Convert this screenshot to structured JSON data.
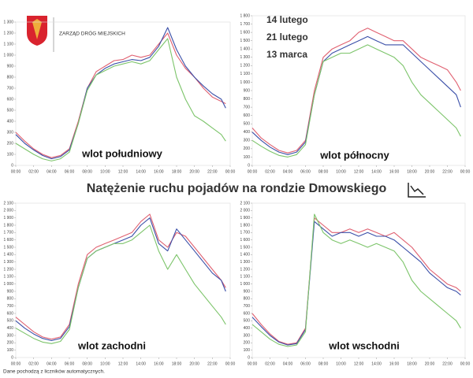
{
  "logo_text": "ZARZĄD DRÓG MIEJSKICH",
  "title": "Natężenie ruchu pojadów na rondzie Dmowskiego",
  "footnote": "Dane pochodzą z liczników automatycznych.",
  "chart_data": [
    {
      "type": "line",
      "annotation": "wlot południowy",
      "x": [
        0,
        1,
        2,
        3,
        4,
        5,
        6,
        7,
        8,
        9,
        10,
        11,
        12,
        13,
        14,
        15,
        16,
        17,
        18,
        19,
        20,
        21,
        22,
        23,
        23.5
      ],
      "xlim": [
        0,
        24
      ],
      "xticks": [
        {
          "value": 0,
          "label": "00:00"
        },
        {
          "value": 2,
          "label": "02:00"
        },
        {
          "value": 4,
          "label": "04:00"
        },
        {
          "value": 6,
          "label": "06:00"
        },
        {
          "value": 8,
          "label": "08:00"
        },
        {
          "value": 10,
          "label": "10:00"
        },
        {
          "value": 12,
          "label": "12:00"
        },
        {
          "value": 14,
          "label": "14:00"
        },
        {
          "value": 16,
          "label": "16:00"
        },
        {
          "value": 18,
          "label": "18:00"
        },
        {
          "value": 20,
          "label": "20:00"
        },
        {
          "value": 22,
          "label": "22:00"
        },
        {
          "value": 24,
          "label": "00:00"
        }
      ],
      "ylim": [
        0,
        1300
      ],
      "yticks": [
        0,
        100,
        200,
        300,
        400,
        500,
        600,
        700,
        800,
        900,
        {
          "value": 1000,
          "label": "1 000"
        },
        {
          "value": 1100,
          "label": "1 100"
        },
        {
          "value": 1200,
          "label": "1 200"
        },
        {
          "value": 1300,
          "label": "1 300"
        }
      ],
      "series": [
        {
          "color": "#e06070",
          "values": [
            300,
            220,
            150,
            100,
            70,
            90,
            150,
            400,
            700,
            850,
            900,
            950,
            960,
            1000,
            980,
            1000,
            1100,
            1200,
            1000,
            880,
            800,
            700,
            620,
            580,
            560
          ]
        },
        {
          "color": "#3a4fa8",
          "values": [
            280,
            200,
            140,
            90,
            60,
            80,
            140,
            380,
            700,
            820,
            880,
            920,
            940,
            960,
            950,
            980,
            1080,
            1250,
            1050,
            900,
            800,
            720,
            650,
            600,
            520
          ]
        },
        {
          "color": "#7cc46a",
          "values": [
            200,
            150,
            100,
            60,
            40,
            60,
            120,
            380,
            680,
            820,
            860,
            900,
            920,
            940,
            920,
            950,
            1050,
            1150,
            800,
            600,
            450,
            400,
            340,
            280,
            220
          ]
        }
      ]
    },
    {
      "type": "line",
      "annotation": "wlot północny",
      "x": [
        0,
        1,
        2,
        3,
        4,
        5,
        6,
        7,
        8,
        9,
        10,
        11,
        12,
        13,
        14,
        15,
        16,
        17,
        18,
        19,
        20,
        21,
        22,
        23,
        23.5
      ],
      "xlim": [
        0,
        24
      ],
      "xticks": [
        {
          "value": 0,
          "label": "00:00"
        },
        {
          "value": 2,
          "label": "02:00"
        },
        {
          "value": 4,
          "label": "04:00"
        },
        {
          "value": 6,
          "label": "06:00"
        },
        {
          "value": 8,
          "label": "08:00"
        },
        {
          "value": 10,
          "label": "10:00"
        },
        {
          "value": 12,
          "label": "12:00"
        },
        {
          "value": 14,
          "label": "14:00"
        },
        {
          "value": 16,
          "label": "16:00"
        },
        {
          "value": 18,
          "label": "18:00"
        },
        {
          "value": 20,
          "label": "20:00"
        },
        {
          "value": 22,
          "label": "22:00"
        },
        {
          "value": 24,
          "label": "00:00"
        }
      ],
      "ylim": [
        0,
        1800
      ],
      "yticks": [
        0,
        100,
        200,
        300,
        400,
        500,
        600,
        700,
        800,
        900,
        {
          "value": 1000,
          "label": "1 000"
        },
        {
          "value": 1100,
          "label": "1 100"
        },
        {
          "value": 1200,
          "label": "1 200"
        },
        {
          "value": 1300,
          "label": "1 300"
        },
        {
          "value": 1400,
          "label": "1 400"
        },
        {
          "value": 1500,
          "label": "1 500"
        },
        {
          "value": 1600,
          "label": "1 600"
        },
        {
          "value": 1700,
          "label": "1 700"
        },
        {
          "value": 1800,
          "label": "1 800"
        }
      ],
      "legend": "top-left",
      "series": [
        {
          "name": "14 lutego",
          "color": "#e06070",
          "values": [
            450,
            330,
            250,
            180,
            150,
            180,
            300,
            900,
            1300,
            1400,
            1450,
            1500,
            1600,
            1650,
            1600,
            1550,
            1500,
            1500,
            1400,
            1300,
            1250,
            1200,
            1150,
            1000,
            900
          ]
        },
        {
          "name": "21 lutego",
          "color": "#3a4fa8",
          "values": [
            400,
            300,
            220,
            160,
            130,
            160,
            280,
            850,
            1250,
            1350,
            1400,
            1450,
            1500,
            1550,
            1500,
            1450,
            1450,
            1450,
            1350,
            1250,
            1150,
            1050,
            950,
            850,
            700
          ]
        },
        {
          "name": "13 marca",
          "color": "#7cc46a",
          "values": [
            300,
            230,
            170,
            120,
            100,
            130,
            250,
            850,
            1250,
            1300,
            1350,
            1350,
            1400,
            1450,
            1400,
            1350,
            1300,
            1200,
            1000,
            850,
            750,
            650,
            550,
            450,
            350
          ]
        }
      ]
    },
    {
      "type": "line",
      "annotation": "wlot zachodni",
      "x": [
        0,
        1,
        2,
        3,
        4,
        5,
        6,
        7,
        8,
        9,
        10,
        11,
        12,
        13,
        14,
        15,
        16,
        17,
        18,
        19,
        20,
        21,
        22,
        23,
        23.5
      ],
      "xlim": [
        0,
        24
      ],
      "xticks": [
        {
          "value": 0,
          "label": "00:00"
        },
        {
          "value": 2,
          "label": "02:00"
        },
        {
          "value": 4,
          "label": "04:00"
        },
        {
          "value": 6,
          "label": "06:00"
        },
        {
          "value": 8,
          "label": "08:00"
        },
        {
          "value": 10,
          "label": "10:00"
        },
        {
          "value": 12,
          "label": "12:00"
        },
        {
          "value": 14,
          "label": "14:00"
        },
        {
          "value": 16,
          "label": "16:00"
        },
        {
          "value": 18,
          "label": "18:00"
        },
        {
          "value": 20,
          "label": "20:00"
        },
        {
          "value": 22,
          "label": "22:00"
        },
        {
          "value": 24,
          "label": "00:00"
        }
      ],
      "ylim": [
        0,
        2100
      ],
      "yticks": [
        0,
        100,
        200,
        300,
        400,
        500,
        600,
        700,
        800,
        900,
        {
          "value": 1000,
          "label": "1 000"
        },
        {
          "value": 1100,
          "label": "1 100"
        },
        {
          "value": 1200,
          "label": "1 200"
        },
        {
          "value": 1300,
          "label": "1 300"
        },
        {
          "value": 1400,
          "label": "1 400"
        },
        {
          "value": 1500,
          "label": "1 500"
        },
        {
          "value": 1600,
          "label": "1 600"
        },
        {
          "value": 1700,
          "label": "1 700"
        },
        {
          "value": 1800,
          "label": "1 800"
        },
        {
          "value": 1900,
          "label": "1 900"
        },
        {
          "value": 2000,
          "label": "2 000"
        },
        {
          "value": 2100,
          "label": "2 100"
        }
      ],
      "series": [
        {
          "color": "#e06070",
          "values": [
            550,
            450,
            350,
            280,
            250,
            280,
            450,
            1000,
            1400,
            1500,
            1550,
            1600,
            1650,
            1700,
            1850,
            1950,
            1600,
            1500,
            1700,
            1650,
            1500,
            1350,
            1200,
            1050,
            950
          ]
        },
        {
          "color": "#3a4fa8",
          "values": [
            500,
            400,
            320,
            260,
            230,
            260,
            420,
            950,
            1350,
            1450,
            1500,
            1550,
            1600,
            1650,
            1800,
            1900,
            1550,
            1450,
            1750,
            1600,
            1450,
            1300,
            1150,
            1050,
            900
          ]
        },
        {
          "color": "#7cc46a",
          "values": [
            400,
            330,
            260,
            210,
            190,
            220,
            380,
            950,
            1350,
            1450,
            1500,
            1550,
            1550,
            1600,
            1700,
            1800,
            1450,
            1200,
            1400,
            1200,
            1000,
            850,
            700,
            550,
            450
          ]
        }
      ]
    },
    {
      "type": "line",
      "annotation": "wlot wschodni",
      "x": [
        0,
        1,
        2,
        3,
        4,
        5,
        6,
        7,
        8,
        9,
        10,
        11,
        12,
        13,
        14,
        15,
        16,
        17,
        18,
        19,
        20,
        21,
        22,
        23,
        23.5
      ],
      "xlim": [
        0,
        24
      ],
      "xticks": [
        {
          "value": 0,
          "label": "00:00"
        },
        {
          "value": 2,
          "label": "02:00"
        },
        {
          "value": 4,
          "label": "04:00"
        },
        {
          "value": 6,
          "label": "06:00"
        },
        {
          "value": 8,
          "label": "08:00"
        },
        {
          "value": 10,
          "label": "10:00"
        },
        {
          "value": 12,
          "label": "12:00"
        },
        {
          "value": 14,
          "label": "14:00"
        },
        {
          "value": 16,
          "label": "16:00"
        },
        {
          "value": 18,
          "label": "18:00"
        },
        {
          "value": 20,
          "label": "20:00"
        },
        {
          "value": 22,
          "label": "22:00"
        },
        {
          "value": 24,
          "label": "00:00"
        }
      ],
      "ylim": [
        0,
        2100
      ],
      "yticks": [
        0,
        100,
        200,
        300,
        400,
        500,
        600,
        700,
        800,
        900,
        {
          "value": 1000,
          "label": "1 000"
        },
        {
          "value": 1100,
          "label": "1 100"
        },
        {
          "value": 1200,
          "label": "1 200"
        },
        {
          "value": 1300,
          "label": "1 300"
        },
        {
          "value": 1400,
          "label": "1 400"
        },
        {
          "value": 1500,
          "label": "1 500"
        },
        {
          "value": 1600,
          "label": "1 600"
        },
        {
          "value": 1700,
          "label": "1 700"
        },
        {
          "value": 1800,
          "label": "1 800"
        },
        {
          "value": 1900,
          "label": "1 900"
        },
        {
          "value": 2000,
          "label": "2 000"
        },
        {
          "value": 2100,
          "label": "2 100"
        }
      ],
      "series": [
        {
          "color": "#e06070",
          "values": [
            600,
            450,
            320,
            220,
            180,
            200,
            400,
            1900,
            1800,
            1700,
            1700,
            1750,
            1700,
            1750,
            1700,
            1650,
            1700,
            1600,
            1500,
            1350,
            1200,
            1100,
            1000,
            950,
            900
          ]
        },
        {
          "color": "#3a4fa8",
          "values": [
            550,
            420,
            300,
            210,
            170,
            190,
            380,
            1850,
            1750,
            1650,
            1700,
            1700,
            1650,
            1700,
            1650,
            1650,
            1600,
            1500,
            1400,
            1300,
            1150,
            1050,
            950,
            900,
            850
          ]
        },
        {
          "color": "#7cc46a",
          "values": [
            450,
            350,
            250,
            180,
            150,
            170,
            350,
            1950,
            1700,
            1600,
            1550,
            1600,
            1550,
            1500,
            1550,
            1500,
            1450,
            1300,
            1050,
            900,
            800,
            700,
            600,
            500,
            400
          ]
        }
      ]
    }
  ]
}
